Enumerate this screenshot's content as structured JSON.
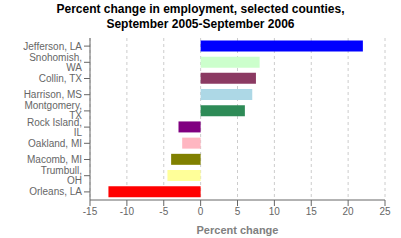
{
  "chart_data": {
    "type": "bar",
    "orientation": "horizontal",
    "title": "Percent change in employment, selected counties,\nSeptember 2005-September 2006",
    "categories": [
      "Jefferson, LA",
      "Snohomish, WA",
      "Collin, TX",
      "Harrison, MS",
      "Montgomery, TX",
      "Rock Island, IL",
      "Oakland, MI",
      "Macomb, MI",
      "Trumbull, OH",
      "Orleans, LA"
    ],
    "values": [
      22.0,
      8.0,
      7.5,
      7.0,
      6.0,
      -3.0,
      -2.5,
      -4.0,
      -4.5,
      -12.5
    ],
    "colors": [
      "#0000ff",
      "#ccffcc",
      "#8b3a62",
      "#add8e6",
      "#2e8b57",
      "#800080",
      "#ffb6c1",
      "#808000",
      "#ffff99",
      "#ff0000"
    ],
    "xlabel": "Percent change",
    "xlim": [
      -15,
      25
    ],
    "xticks": [
      -15,
      -10,
      -5,
      0,
      5,
      10,
      15,
      20,
      25
    ],
    "grid": true
  }
}
